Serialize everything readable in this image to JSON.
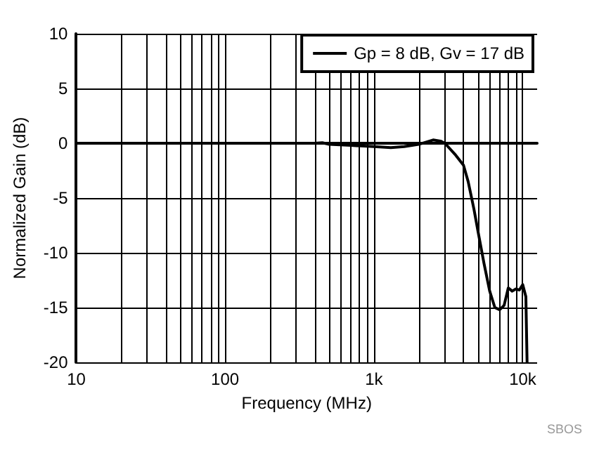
{
  "chart_data": {
    "type": "line",
    "xlabel": "Frequency (MHz)",
    "ylabel": "Normalized Gain (dB)",
    "log": "x",
    "grid": true,
    "legend": "top right",
    "line_style": "solid",
    "xlim": [
      10,
      12500
    ],
    "ylim": [
      -20,
      10
    ],
    "xticks": [
      10,
      {
        "value": 20,
        "label": null
      },
      {
        "value": 30,
        "label": null
      },
      {
        "value": 40,
        "label": null
      },
      {
        "value": 50,
        "label": null
      },
      {
        "value": 60,
        "label": null
      },
      {
        "value": 70,
        "label": null
      },
      {
        "value": 80,
        "label": null
      },
      {
        "value": 90,
        "label": null
      },
      100,
      {
        "value": 200,
        "label": null
      },
      {
        "value": 300,
        "label": null
      },
      {
        "value": 400,
        "label": null
      },
      {
        "value": 500,
        "label": null
      },
      {
        "value": 600,
        "label": null
      },
      {
        "value": 700,
        "label": null
      },
      {
        "value": 800,
        "label": null
      },
      {
        "value": 900,
        "label": null
      },
      {
        "value": 1000,
        "label": "1k"
      },
      {
        "value": 2000,
        "label": null
      },
      {
        "value": 3000,
        "label": null
      },
      {
        "value": 4000,
        "label": null
      },
      {
        "value": 5000,
        "label": null
      },
      {
        "value": 6000,
        "label": null
      },
      {
        "value": 7000,
        "label": null
      },
      {
        "value": 8000,
        "label": null
      },
      {
        "value": 9000,
        "label": null
      },
      {
        "value": 10000,
        "label": "10k"
      }
    ],
    "yticks": [
      -20,
      -15,
      -10,
      -5,
      0,
      5,
      10
    ],
    "annotations": [
      "SBOS"
    ],
    "series": [
      {
        "name": "Gp = 8 dB, Gv = 17 dB",
        "color": "#000000",
        "x": [
          10,
          100,
          400,
          450,
          500,
          700,
          1000,
          1300,
          1600,
          2000,
          2500,
          2800,
          3000,
          3500,
          4000,
          4300,
          4700,
          5000,
          5500,
          6000,
          6500,
          7000,
          7500,
          8000,
          8500,
          9000,
          9500,
          10000,
          10500,
          10700
        ],
        "values": [
          0,
          0,
          0,
          0.05,
          -0.1,
          -0.2,
          -0.3,
          -0.4,
          -0.3,
          -0.1,
          0.3,
          0.2,
          0,
          -1,
          -2,
          -3.5,
          -6,
          -8,
          -11,
          -13.5,
          -15,
          -15.2,
          -14.8,
          -13.2,
          -13.5,
          -13.3,
          -13.4,
          -12.9,
          -14,
          -20
        ]
      }
    ]
  }
}
